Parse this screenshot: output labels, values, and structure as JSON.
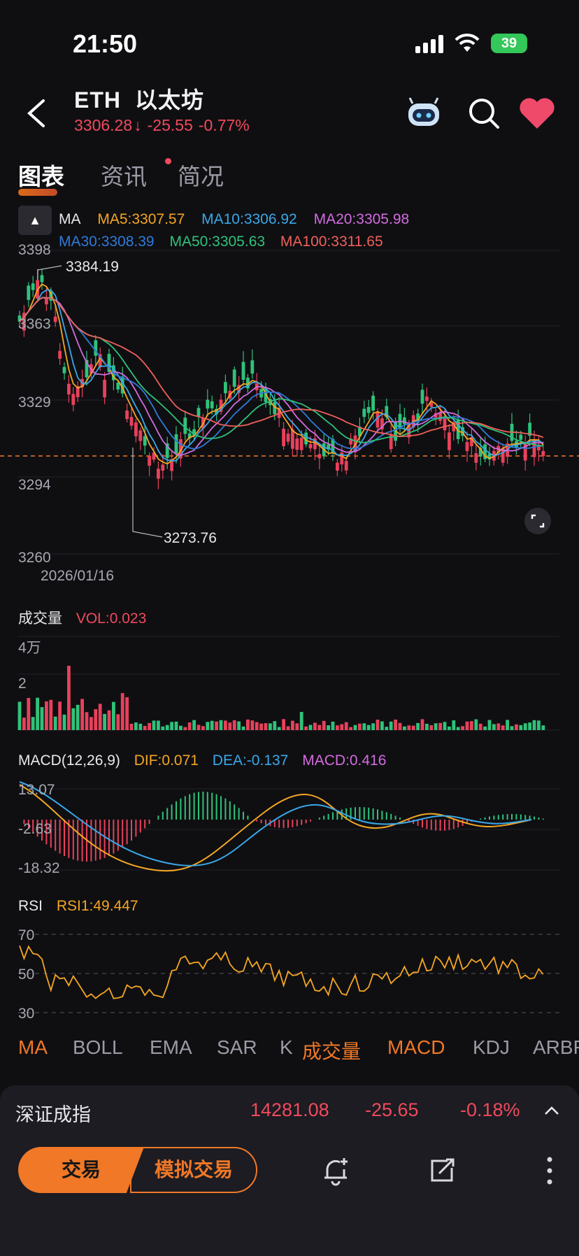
{
  "status": {
    "time": "21:50",
    "battery": "39"
  },
  "header": {
    "symbol": "ETH",
    "name": "以太坊",
    "price": "3306.28",
    "change": "-25.55",
    "change_pct": "-0.77%"
  },
  "tabs": [
    {
      "label": "图表",
      "active": true
    },
    {
      "label": "资讯",
      "active": false,
      "badge": true
    },
    {
      "label": "简况",
      "active": false
    }
  ],
  "ma_legend": {
    "label": "MA",
    "items": [
      {
        "text": "MA5:3307.57",
        "color": "#f5a623"
      },
      {
        "text": "MA10:3306.92",
        "color": "#3aa8e8"
      },
      {
        "text": "MA20:3305.98",
        "color": "#d46be0"
      },
      {
        "text": "MA30:3308.39",
        "color": "#2f7bd9"
      },
      {
        "text": "MA50:3305.63",
        "color": "#2fc27a"
      },
      {
        "text": "MA100:3311.65",
        "color": "#f0605a"
      }
    ]
  },
  "price_axis": [
    "3398",
    "3363",
    "3329",
    "3294",
    "3260"
  ],
  "date_label": "2026/01/16",
  "high_label": "3384.19",
  "low_label": "3273.76",
  "volume": {
    "title": "成交量",
    "vol": "VOL:0.023",
    "axis": [
      "4万",
      "2"
    ]
  },
  "macd": {
    "title": "MACD(12,26,9)",
    "dif": "DIF:0.071",
    "dea": "DEA:-0.137",
    "macd": "MACD:0.416",
    "axis": [
      "13.07",
      "-2.63",
      "-18.32"
    ]
  },
  "rsi": {
    "title": "RSI",
    "rsi1": "RSI1:49.447",
    "axis": [
      "70",
      "50",
      "30"
    ]
  },
  "indicator_tabs": [
    {
      "label": "MA",
      "on": true
    },
    {
      "label": "BOLL",
      "on": false
    },
    {
      "label": "EMA",
      "on": false
    },
    {
      "label": "SAR",
      "on": false
    },
    {
      "label": "K",
      "on": false
    },
    {
      "label": "成交量",
      "on": true
    },
    {
      "label": "MACD",
      "on": true
    },
    {
      "label": "KDJ",
      "on": false
    },
    {
      "label": "ARBR",
      "on": false
    }
  ],
  "index_bar": {
    "name": "深证成指",
    "value": "14281.08",
    "change": "-25.65",
    "pct": "-0.18%"
  },
  "footer": {
    "trade": "交易",
    "sim_trade": "模拟交易"
  },
  "colors": {
    "up": "#2fc27a",
    "down": "#e8415b",
    "accent": "#f07827",
    "bg": "#0f0f12"
  },
  "icons": [
    "back-icon",
    "robot-icon",
    "search-icon",
    "heart-icon",
    "expand-icon",
    "chevron-up-icon",
    "bell-add-icon",
    "share-icon",
    "more-icon"
  ]
}
